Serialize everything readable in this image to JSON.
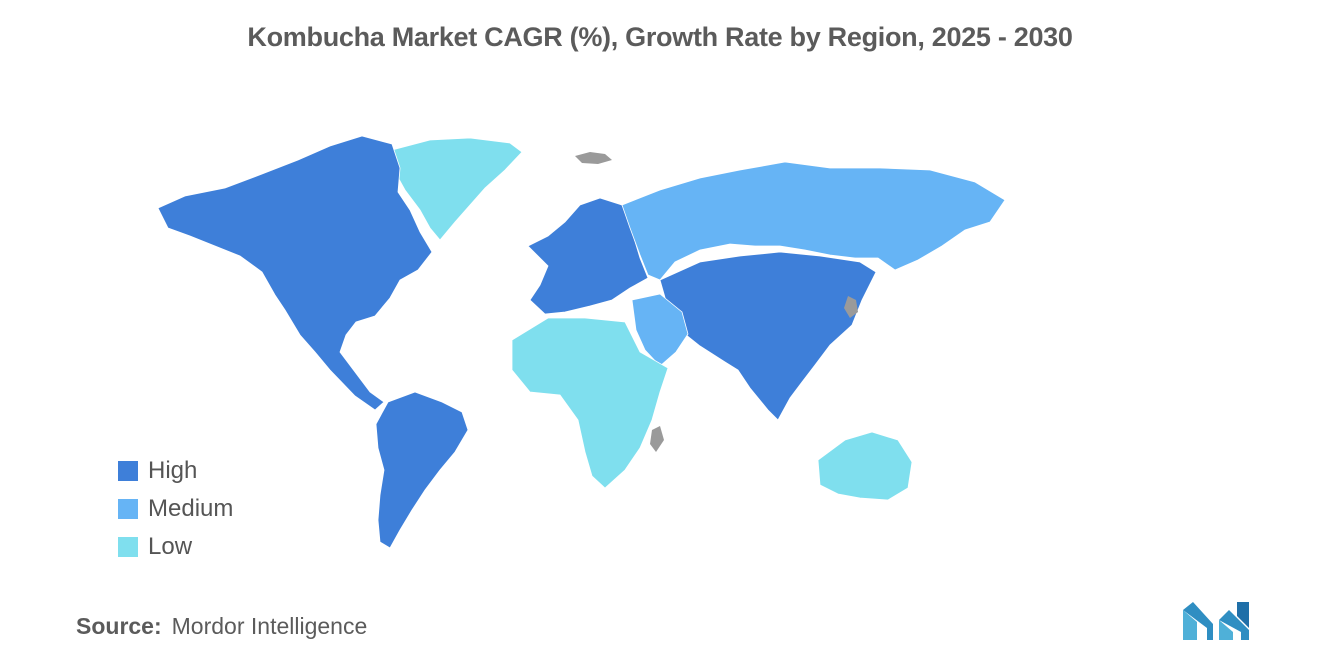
{
  "title": "Kombucha Market CAGR (%), Growth Rate by Region, 2025 - 2030",
  "legend": [
    {
      "key": "high",
      "label": "High",
      "color": "#3e7fd9"
    },
    {
      "key": "medium",
      "label": "Medium",
      "color": "#66b4f5"
    },
    {
      "key": "low",
      "label": "Low",
      "color": "#7fdfee"
    }
  ],
  "no_data_color": "#9a9a9a",
  "regions": [
    {
      "name": "north-america",
      "category": "high"
    },
    {
      "name": "south-america",
      "category": "high"
    },
    {
      "name": "europe",
      "category": "high"
    },
    {
      "name": "asia",
      "category": "high"
    },
    {
      "name": "russia",
      "category": "medium"
    },
    {
      "name": "middle-east",
      "category": "medium"
    },
    {
      "name": "greenland",
      "category": "low"
    },
    {
      "name": "africa",
      "category": "low"
    },
    {
      "name": "australia",
      "category": "low"
    }
  ],
  "source": {
    "label": "Source:",
    "value": "Mordor Intelligence"
  },
  "logo_icon": "mordor-intelligence-logo-icon"
}
